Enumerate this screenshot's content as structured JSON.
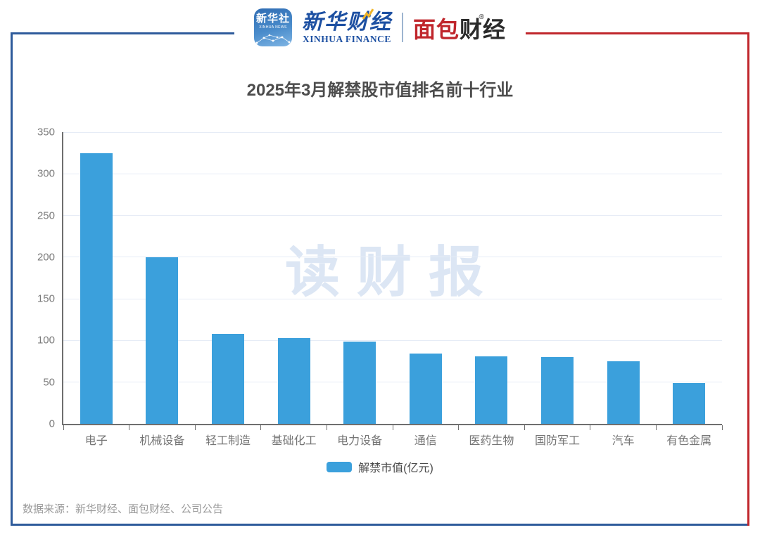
{
  "header": {
    "xinhua_app": {
      "line1": "新华社",
      "line2": "XINHUA NEWS"
    },
    "xinhua_finance": {
      "cn": "新华财经",
      "en": "XINHUA FINANCE"
    },
    "mianbao": {
      "cn_red": "面包",
      "cn_dark": "财经",
      "reg": "®"
    }
  },
  "chart_data": {
    "type": "bar",
    "title": "2025年3月解禁股市值排名前十行业",
    "categories": [
      "电子",
      "机械设备",
      "轻工制造",
      "基础化工",
      "电力设备",
      "通信",
      "医药生物",
      "国防军工",
      "汽车",
      "有色金属"
    ],
    "values": [
      325,
      200,
      108,
      103,
      99,
      84,
      81,
      80,
      75,
      49
    ],
    "series_name": "解禁市值(亿元)",
    "xlabel": "",
    "ylabel": "",
    "ylim": [
      0,
      350
    ],
    "yticks": [
      0,
      50,
      100,
      150,
      200,
      250,
      300,
      350
    ],
    "grid": true,
    "legend_position": "bottom"
  },
  "watermark": "读财报",
  "footer": {
    "source": "数据来源：新华财经、面包财经、公司公告"
  },
  "colors": {
    "bar": "#3ba0dc",
    "frame_blue": "#2e5b9b",
    "frame_red": "#c0262c",
    "grid": "#e6ecf6",
    "axis": "#6f6f6f",
    "watermark": "#dce6f4"
  }
}
